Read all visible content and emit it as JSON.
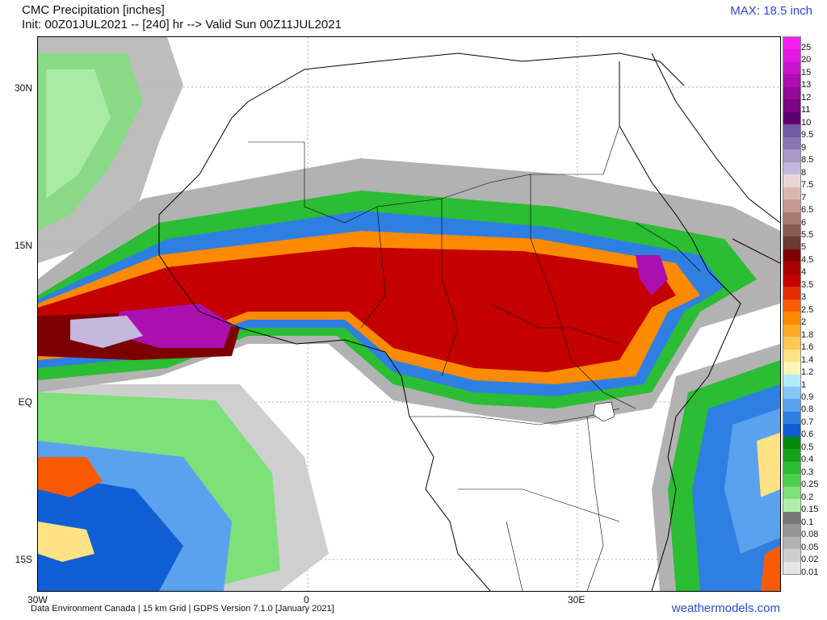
{
  "header": {
    "title": "CMC Precipitation [inches]",
    "init": "Init: 00Z01JUL2021 -- [240] hr --> Valid Sun 00Z11JUL2021",
    "max": "MAX: 18.5 inch"
  },
  "axes": {
    "lat_labels": [
      "30N",
      "15N",
      "EQ",
      "15S"
    ],
    "lon_labels": [
      "30W",
      "0",
      "30E"
    ]
  },
  "legend": {
    "levels": [
      "25",
      "20",
      "15",
      "13",
      "12",
      "11",
      "10",
      "9.5",
      "9",
      "8.5",
      "8",
      "7.5",
      "7",
      "6.5",
      "6",
      "5.5",
      "5",
      "4.5",
      "4",
      "3.5",
      "3",
      "2.5",
      "2",
      "1.8",
      "1.6",
      "1.4",
      "1.2",
      "1",
      "0.9",
      "0.8",
      "0.7",
      "0.6",
      "0.5",
      "0.4",
      "0.3",
      "0.25",
      "0.2",
      "0.15",
      "0.1",
      "0.08",
      "0.05",
      "0.02",
      "0.01"
    ],
    "colors": [
      "#f71ef1",
      "#e21ae0",
      "#c714c9",
      "#ab0fae",
      "#920b98",
      "#7a0684",
      "#5d0070",
      "#6f5aa3",
      "#8a76b3",
      "#a898c8",
      "#c4b8dc",
      "#e9d6d4",
      "#d8b9b1",
      "#c49a91",
      "#a9796f",
      "#8a5a50",
      "#6b3a31",
      "#7c0000",
      "#a80000",
      "#c40000",
      "#e32a00",
      "#fb5b00",
      "#fd8a00",
      "#fdab2a",
      "#fdc755",
      "#fee283",
      "#fff3b5",
      "#b3ecfd",
      "#87c6f8",
      "#5aa2ee",
      "#2f7fe3",
      "#105ed4",
      "#028a0b",
      "#16a21d",
      "#2bbd33",
      "#4bd04c",
      "#7de079",
      "#b0efa9",
      "#787878",
      "#959595",
      "#b2b2b2",
      "#cfcfcf",
      "#e6e6e6"
    ]
  },
  "footer": {
    "credit": "Data Environment Canada | 15 km Grid | GDPS Version 7.1.0 [January 2021]",
    "site": "weathermodels.com"
  }
}
